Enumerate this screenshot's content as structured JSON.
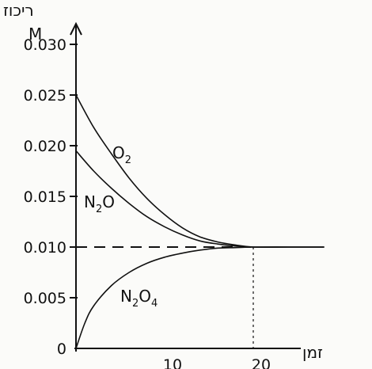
{
  "chart_data": {
    "type": "line",
    "ylabel": "ריכוז",
    "yunit": "M",
    "xlabel": "זמן",
    "ylim": [
      0,
      0.035
    ],
    "xlim": [
      0,
      28
    ],
    "yticks": [
      "0",
      "0.005",
      "0.010",
      "0.015",
      "0.020",
      "0.025",
      "0.030"
    ],
    "xticks": [
      "10",
      "20"
    ],
    "equilibrium_time": 20,
    "series": [
      {
        "name": "O2",
        "x": [
          0,
          2,
          4,
          6,
          8,
          10,
          12,
          14,
          16,
          18,
          20,
          24,
          28
        ],
        "y": [
          0.025,
          0.0218,
          0.0192,
          0.0168,
          0.0148,
          0.0132,
          0.0119,
          0.011,
          0.0105,
          0.0102,
          0.01,
          0.01,
          0.01
        ]
      },
      {
        "name": "N2O",
        "x": [
          0,
          2,
          4,
          6,
          8,
          10,
          12,
          14,
          16,
          18,
          20,
          24,
          28
        ],
        "y": [
          0.0195,
          0.0175,
          0.0158,
          0.0143,
          0.013,
          0.012,
          0.0112,
          0.0106,
          0.0103,
          0.0101,
          0.01,
          0.01,
          0.01
        ]
      },
      {
        "name": "N2O4",
        "x": [
          0,
          1,
          2,
          4,
          6,
          8,
          10,
          12,
          14,
          16,
          18,
          20,
          24,
          28
        ],
        "y": [
          0.0,
          0.0025,
          0.0042,
          0.0062,
          0.0075,
          0.0084,
          0.009,
          0.0094,
          0.0097,
          0.0099,
          0.00995,
          0.01,
          0.01,
          0.01
        ]
      }
    ],
    "reference_line": {
      "y": 0.01,
      "style": "dashed"
    }
  },
  "labels": {
    "O2": {
      "main": "O",
      "sub": "2"
    },
    "N2O": {
      "a": "N",
      "sub": "2",
      "b": "O"
    },
    "N2O4": {
      "a": "N",
      "sub1": "2",
      "b": "O",
      "sub2": "4"
    }
  }
}
